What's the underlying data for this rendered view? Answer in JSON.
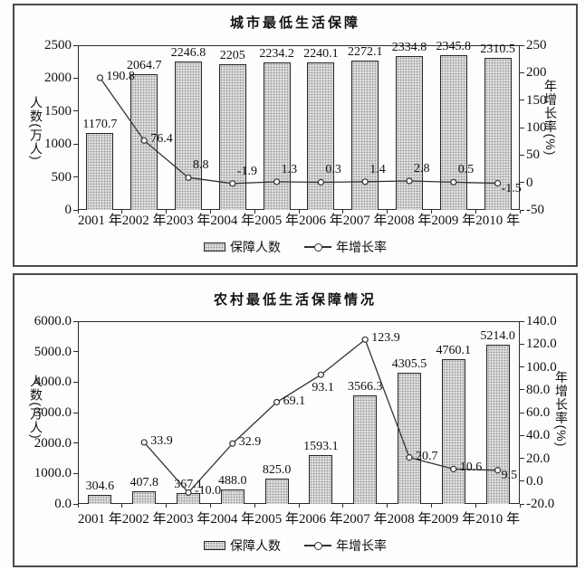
{
  "colors": {
    "bar_fill": "#dcdcdc",
    "bar_dot": "#8f8f8f",
    "bar_border": "#262626",
    "line": "#333333",
    "marker_fill": "#ffffff",
    "text": "#111111",
    "panel_border": "#4a4a4a"
  },
  "chart_data": [
    {
      "type": "bar+line",
      "title": "城市最低生活保障",
      "categories": [
        "2001 年",
        "2002 年",
        "2003 年",
        "2004 年",
        "2005 年",
        "2006 年",
        "2007 年",
        "2008 年",
        "2009 年",
        "2010 年"
      ],
      "legend_position": "bottom-center",
      "grid": false,
      "left_axis": {
        "title": "人数(万人)",
        "min": 0,
        "max": 2500,
        "step": 500,
        "ticks": [
          "2500",
          "2000",
          "1500",
          "1000",
          "500",
          "0"
        ]
      },
      "right_axis": {
        "title": "年增长率(%)",
        "min": -50,
        "max": 250,
        "step": 50,
        "ticks": [
          "250",
          "200",
          "150",
          "100",
          "50",
          "0",
          "-50"
        ]
      },
      "bars": {
        "label": "保障人数",
        "axis": "left",
        "values": [
          1170.7,
          2064.7,
          2246.8,
          2205,
          2234.2,
          2240.1,
          2272.1,
          2334.8,
          2345.8,
          2310.5
        ],
        "labels": [
          "1170.7",
          "2064.7",
          "2246.8",
          "2205",
          "2234.2",
          "2240.1",
          "2272.1",
          "2334.8",
          "2345.8",
          "2310.5"
        ]
      },
      "line": {
        "label": "年增长率",
        "axis": "right",
        "values": [
          190.8,
          76.4,
          8.8,
          -1.9,
          1.3,
          0.3,
          1.4,
          2.8,
          0.5,
          -1.5
        ],
        "labels": [
          "190.8",
          "76.4",
          "8.8",
          "-1.9",
          "1.3",
          "0.3",
          "1.4",
          "2.8",
          "0.5",
          "-1.5"
        ],
        "label_side": [
          "right",
          "right",
          "above-right",
          "above-right",
          "above-right",
          "above-right",
          "above-right",
          "above-right",
          "above-right",
          "below-right"
        ]
      }
    },
    {
      "type": "bar+line",
      "title": "农村最低生活保障情况",
      "categories": [
        "2001 年",
        "2002 年",
        "2003 年",
        "2004 年",
        "2005 年",
        "2006 年",
        "2007 年",
        "2008 年",
        "2009 年",
        "2010 年"
      ],
      "legend_position": "bottom-center",
      "grid": false,
      "left_axis": {
        "title": "人数(万人)",
        "min": 0,
        "max": 6000,
        "step": 1000,
        "ticks": [
          "6000.0",
          "5000.0",
          "4000.0",
          "3000.0",
          "2000.0",
          "1000.0",
          "0.0"
        ]
      },
      "right_axis": {
        "title": "年增长率(%)",
        "min": -20,
        "max": 140,
        "step": 20,
        "ticks": [
          "140.0",
          "120.0",
          "100.0",
          "80.0",
          "60.0",
          "40.0",
          "20.0",
          "0.0",
          "-20.0"
        ]
      },
      "bars": {
        "label": "保障人数",
        "axis": "left",
        "values": [
          304.6,
          407.8,
          367.1,
          488.0,
          825.0,
          1593.1,
          3566.3,
          4305.5,
          4760.1,
          5214.0
        ],
        "labels": [
          "304.6",
          "407.8",
          "367.1",
          "488.0",
          "825.0",
          "1593.1",
          "3566.3",
          "4305.5",
          "4760.1",
          "5214.0"
        ]
      },
      "line": {
        "label": "年增长率",
        "axis": "right",
        "values": [
          null,
          33.9,
          -10.0,
          32.9,
          69.1,
          93.1,
          123.9,
          20.7,
          10.6,
          9.5
        ],
        "labels": [
          "",
          "33.9",
          "-10.0",
          "32.9",
          "69.1",
          "93.1",
          "123.9",
          "20.7",
          "10.6",
          "9.5"
        ],
        "label_side": [
          null,
          "right",
          "right",
          "right",
          "right",
          "below-left",
          "right",
          "right",
          "right",
          "below-right"
        ]
      }
    }
  ]
}
